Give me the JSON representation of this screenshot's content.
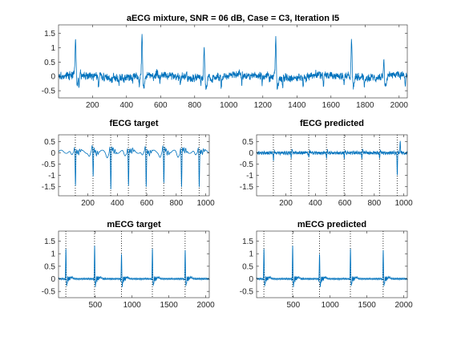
{
  "figure": {
    "background": "#ffffff",
    "trace_color": "#0072BD",
    "axis_color": "#262626",
    "marker_color": "#000000"
  },
  "chart_data": [
    {
      "id": "top",
      "type": "line",
      "title": "aECG mixture, SNR = 06 dB, Case = C3, Iteration I5",
      "xlim": [
        1,
        2048
      ],
      "ylim": [
        -0.75,
        1.8
      ],
      "xticks": [
        200,
        400,
        600,
        800,
        1000,
        1200,
        1400,
        1600,
        1800,
        2000
      ],
      "yticks": [
        -0.5,
        0,
        0.5,
        1,
        1.5
      ],
      "ytick_labels": [
        "-0.5",
        "0",
        "0.5",
        "1",
        "1.5"
      ],
      "signal": {
        "kind": "mixture",
        "n": 2048,
        "maternal_peaks": [
          100,
          490,
          855,
          1275,
          1720,
          1910
        ],
        "maternal_peak_values": [
          1.25,
          1.45,
          1.0,
          1.45,
          1.25,
          0.55
        ],
        "fetal_peaks": [
          120,
          235,
          355,
          475,
          595,
          715,
          835,
          955,
          1075,
          1195,
          1315,
          1435,
          1555,
          1675,
          1795,
          1915,
          2035
        ],
        "noise_level": 0.18
      }
    },
    {
      "id": "fecg-target",
      "type": "line",
      "title": "fECG target",
      "xlim": [
        1,
        1024
      ],
      "ylim": [
        -1.9,
        0.8
      ],
      "xticks": [
        200,
        400,
        600,
        800,
        1000
      ],
      "yticks": [
        -1.5,
        -1,
        -0.5,
        0,
        0.5
      ],
      "ytick_labels": [
        "-1.5",
        "-1",
        "-0.5",
        "0",
        "0.5"
      ],
      "markers": [
        115,
        235,
        355,
        475,
        595,
        715,
        835,
        955
      ],
      "signal": {
        "kind": "fetal",
        "n": 1024,
        "peak_values": [
          -1.5,
          -1.2,
          -1.75,
          -1.5,
          -1.6,
          -1.5,
          -1.6,
          -1.55
        ],
        "baseline": 0.05
      }
    },
    {
      "id": "fecg-predicted",
      "type": "line",
      "title": "fECG predicted",
      "xlim": [
        1,
        1024
      ],
      "ylim": [
        -1.9,
        0.8
      ],
      "xticks": [
        200,
        400,
        600,
        800,
        1000
      ],
      "yticks": [
        -1.5,
        -1,
        -0.5,
        0,
        0.5
      ],
      "ytick_labels": [
        "-1.5",
        "-1",
        "-0.5",
        "0",
        "0.5"
      ],
      "markers": [
        115,
        235,
        355,
        475,
        595,
        715,
        835,
        955
      ],
      "signal": {
        "kind": "fetal-pred",
        "n": 1024,
        "peak_values": [
          -0.35,
          -0.2,
          -0.3,
          -0.25,
          -0.3,
          -0.25,
          -0.3,
          -1.05
        ],
        "positive_spike": {
          "x": 975,
          "y": 0.55
        },
        "baseline": 0.0
      }
    },
    {
      "id": "mecg-target",
      "type": "line",
      "title": "mECG target",
      "xlim": [
        1,
        2048
      ],
      "ylim": [
        -0.75,
        1.9
      ],
      "xticks": [
        500,
        1000,
        1500,
        2000
      ],
      "yticks": [
        -0.5,
        0,
        0.5,
        1,
        1.5
      ],
      "ytick_labels": [
        "-0.5",
        "0",
        "0.5",
        "1",
        "1.5"
      ],
      "markers": [
        100,
        490,
        855,
        1275,
        1720
      ],
      "signal": {
        "kind": "maternal",
        "n": 2048,
        "peak_values": [
          1.3,
          1.38,
          1.05,
          1.3,
          1.25
        ]
      }
    },
    {
      "id": "mecg-predicted",
      "type": "line",
      "title": "mECG predicted",
      "xlim": [
        1,
        2048
      ],
      "ylim": [
        -0.75,
        1.9
      ],
      "xticks": [
        500,
        1000,
        1500,
        2000
      ],
      "yticks": [
        -0.5,
        0,
        0.5,
        1,
        1.5
      ],
      "ytick_labels": [
        "-0.5",
        "0",
        "0.5",
        "1",
        "1.5"
      ],
      "markers": [
        100,
        490,
        855,
        1275,
        1720
      ],
      "signal": {
        "kind": "maternal",
        "n": 2048,
        "peak_values": [
          1.3,
          1.38,
          1.05,
          1.3,
          1.25
        ]
      }
    }
  ]
}
